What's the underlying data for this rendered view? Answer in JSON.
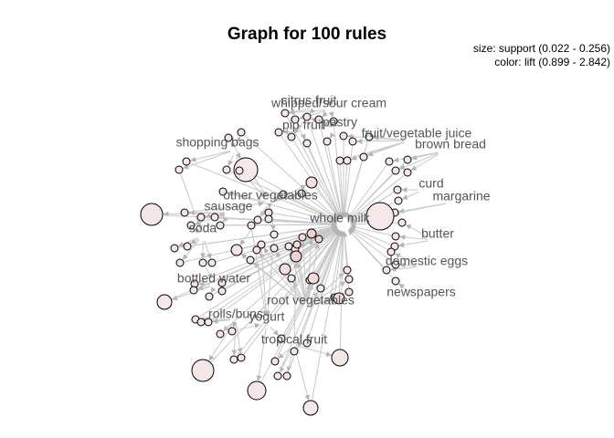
{
  "title": "Graph for 100 rules",
  "legend": {
    "size": "size: support (0.022 - 0.256)",
    "color": "color: lift (0.899 - 2.842)"
  },
  "colors": {
    "edge": "#c8c8c8",
    "arrow": "#b4b4b4",
    "node_stroke": "#000000",
    "node_fill_low": "#f7ecec",
    "node_fill_high": "#f0a8a8",
    "label": "#555555"
  },
  "items": [
    "citrus fruit",
    "whipped/sour cream",
    "pastry",
    "pip fruit",
    "fruit/vegetable juice",
    "shopping bags",
    "brown bread",
    "curd",
    "margarine",
    "other vegetables",
    "sausage",
    "whole milk",
    "soda",
    "butter",
    "domestic eggs",
    "bottled water",
    "newspapers",
    "root vegetables",
    "rolls/buns",
    "yogurt",
    "tropical fruit"
  ]
}
